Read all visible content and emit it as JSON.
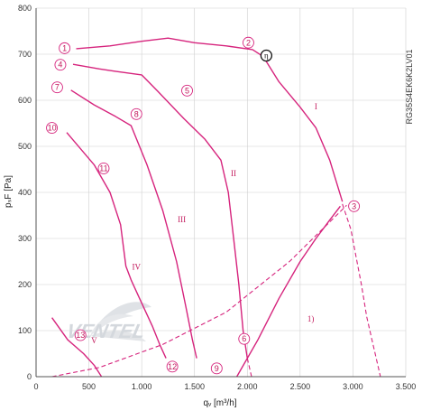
{
  "chart_data": {
    "type": "line",
    "title": "",
    "model_code": "RG35S4EK6K2LV01",
    "xlabel": "qᵥ [m³/h]",
    "ylabel": "pₛF [Pa]",
    "xlim": [
      0,
      3500
    ],
    "ylim": [
      0,
      800
    ],
    "x_ticks": [
      "0",
      "500",
      "1.000",
      "1.500",
      "2.000",
      "2.500",
      "3.000",
      "3.500"
    ],
    "y_ticks": [
      "0",
      "100",
      "200",
      "300",
      "400",
      "500",
      "600",
      "700",
      "800"
    ],
    "grid": true,
    "colors": {
      "curve": "#d6247d",
      "grid": "#cfcfcf",
      "axis": "#555555",
      "watermark": "#c8ccd2"
    },
    "watermark_text": "VENTEL",
    "series": [
      {
        "values": [
          [
            380,
            712
          ],
          [
            700,
            718
          ],
          [
            1000,
            728
          ],
          [
            1250,
            735
          ],
          [
            1500,
            725
          ],
          [
            1800,
            718
          ],
          [
            2050,
            710
          ],
          [
            2150,
            695
          ],
          [
            2300,
            640
          ],
          [
            2500,
            585
          ],
          [
            2650,
            540
          ],
          [
            2780,
            470
          ],
          [
            2900,
            380
          ]
        ]
      },
      {
        "values": [
          [
            350,
            678
          ],
          [
            600,
            668
          ],
          [
            750,
            663
          ],
          [
            1000,
            655
          ],
          [
            1150,
            620
          ],
          [
            1400,
            560
          ],
          [
            1600,
            515
          ],
          [
            1750,
            470
          ],
          [
            1820,
            400
          ],
          [
            1870,
            300
          ],
          [
            1920,
            200
          ],
          [
            1960,
            100
          ],
          [
            2000,
            40
          ]
        ]
      },
      {
        "values": [
          [
            330,
            622
          ],
          [
            550,
            590
          ],
          [
            750,
            565
          ],
          [
            900,
            545
          ],
          [
            1050,
            460
          ],
          [
            1200,
            360
          ],
          [
            1330,
            250
          ],
          [
            1420,
            150
          ],
          [
            1480,
            80
          ],
          [
            1520,
            40
          ]
        ]
      },
      {
        "values": [
          [
            290,
            530
          ],
          [
            550,
            460
          ],
          [
            700,
            400
          ],
          [
            800,
            330
          ],
          [
            850,
            240
          ],
          [
            900,
            210
          ],
          [
            1000,
            160
          ],
          [
            1100,
            110
          ],
          [
            1170,
            70
          ],
          [
            1230,
            40
          ]
        ]
      },
      {
        "values": [
          [
            150,
            128
          ],
          [
            300,
            80
          ],
          [
            450,
            50
          ],
          [
            550,
            25
          ],
          [
            620,
            0
          ]
        ]
      },
      {
        "values": [
          [
            1900,
            0
          ],
          [
            2100,
            80
          ],
          [
            2300,
            170
          ],
          [
            2500,
            250
          ],
          [
            2650,
            300
          ],
          [
            2780,
            340
          ],
          [
            2880,
            370
          ]
        ]
      }
    ],
    "dashed_series": [
      {
        "values": [
          [
            150,
            0
          ],
          [
            600,
            20
          ],
          [
            1200,
            70
          ],
          [
            1800,
            140
          ],
          [
            2400,
            250
          ],
          [
            2940,
            372
          ]
        ]
      },
      {
        "values": [
          [
            2900,
            375
          ],
          [
            2980,
            320
          ],
          [
            3030,
            260
          ],
          [
            3080,
            200
          ],
          [
            3130,
            130
          ],
          [
            3180,
            80
          ],
          [
            3230,
            30
          ],
          [
            3260,
            0
          ]
        ]
      },
      {
        "values": [
          [
            2000,
            40
          ],
          [
            2020,
            20
          ],
          [
            2040,
            0
          ]
        ]
      }
    ],
    "circle_labels": [
      {
        "text": "1",
        "x": 270,
        "y": 713
      },
      {
        "text": "2",
        "x": 2010,
        "y": 725
      },
      {
        "text": "4",
        "x": 230,
        "y": 677
      },
      {
        "text": "5",
        "x": 1430,
        "y": 621
      },
      {
        "text": "7",
        "x": 200,
        "y": 628
      },
      {
        "text": "8",
        "x": 950,
        "y": 570
      },
      {
        "text": "10",
        "x": 150,
        "y": 540
      },
      {
        "text": "11",
        "x": 640,
        "y": 452
      },
      {
        "text": "3",
        "x": 3010,
        "y": 370
      },
      {
        "text": "13",
        "x": 420,
        "y": 90
      },
      {
        "text": "6",
        "x": 1970,
        "y": 82
      },
      {
        "text": "9",
        "x": 1710,
        "y": 18
      },
      {
        "text": "12",
        "x": 1290,
        "y": 22
      }
    ],
    "efficiency_label": {
      "text": "η",
      "x": 2180,
      "y": 697
    },
    "annotations": [
      {
        "text": "I",
        "x": 2650,
        "y": 580
      },
      {
        "text": "II",
        "x": 1870,
        "y": 435
      },
      {
        "text": "III",
        "x": 1380,
        "y": 335
      },
      {
        "text": "IV",
        "x": 950,
        "y": 232
      },
      {
        "text": "V",
        "x": 550,
        "y": 73
      },
      {
        "text": "1)",
        "x": 2600,
        "y": 120
      }
    ]
  }
}
